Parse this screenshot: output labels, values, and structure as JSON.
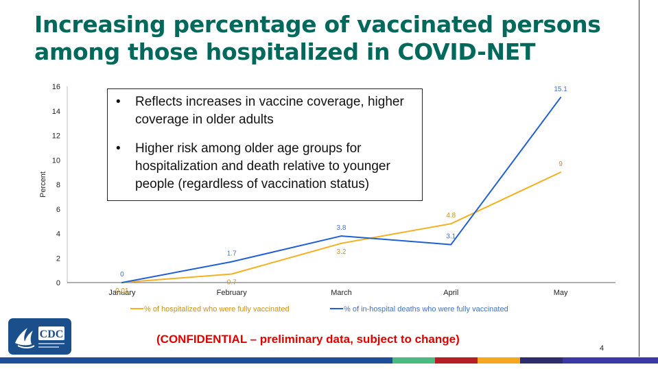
{
  "slide": {
    "title_line1": "Increasing percentage of vaccinated persons",
    "title_line2": "among those hospitalized in COVID-NET",
    "notes": [
      "Reflects increases in vaccine coverage, higher coverage in older adults",
      "Higher risk among older age groups for hospitalization and death relative to younger people (regardless of vaccination status)"
    ],
    "bullet": "•",
    "confidential": "(CONFIDENTIAL – preliminary data, subject to change)",
    "page_number": "4",
    "logo_text": "CDC",
    "bar_colors": [
      "#1f4e96",
      "#4cb882",
      "#b81c24",
      "#f4a81d",
      "#2d2d6b",
      "#3a3aa0"
    ]
  },
  "chart_data": {
    "type": "line",
    "title": "",
    "xlabel": "",
    "ylabel": "Percent",
    "ylim": [
      0,
      16
    ],
    "yticks": [
      0,
      2,
      4,
      6,
      8,
      10,
      12,
      14,
      16
    ],
    "categories": [
      "January",
      "February",
      "March",
      "April",
      "May"
    ],
    "legend_position": "bottom",
    "series": [
      {
        "name": "% of hospitalized who were fully vaccinated",
        "color": "#f4b020",
        "label_color": "#c9901a",
        "values": [
          0.01,
          0.7,
          3.2,
          4.8,
          9
        ],
        "labels": [
          "0.01",
          "0.7",
          "3.2",
          "4.8",
          "9"
        ],
        "label_pos": [
          "below",
          "below",
          "below",
          "above",
          "above"
        ]
      },
      {
        "name": "% of in-hospital deaths who were fully vaccinated",
        "color": "#1f5fd6",
        "label_color": "#4472c4",
        "values": [
          0,
          1.7,
          3.8,
          3.1,
          15.1
        ],
        "labels": [
          "0",
          "1.7",
          "3.8",
          "3.1",
          "15.1"
        ],
        "label_pos": [
          "above",
          "above",
          "above",
          "above",
          "above"
        ]
      }
    ]
  }
}
